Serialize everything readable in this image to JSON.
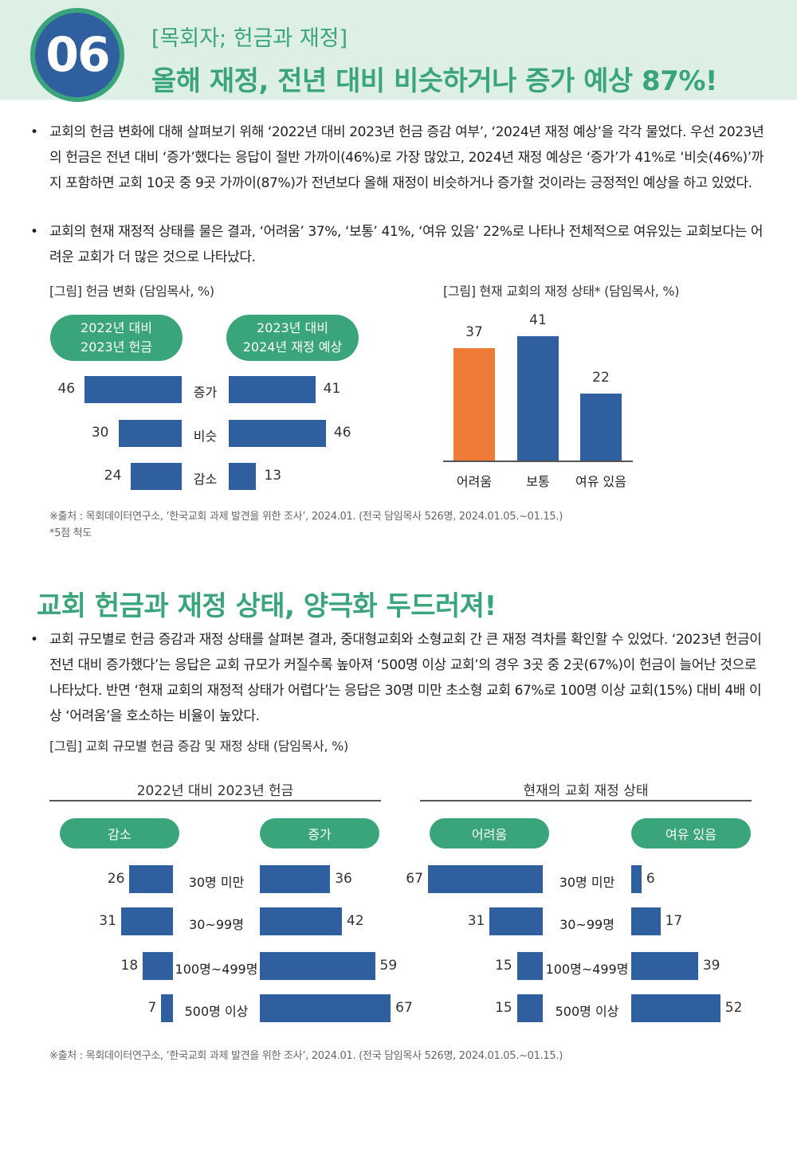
{
  "header": {
    "number": "06",
    "subtitle": "[목회자; 헌금과 재정]",
    "title": "올해 재정, 전년 대비 비슷하거나 증가 예상 87%!"
  },
  "section1": {
    "bullets": [
      "교회의 헌금 변화에 대해 살펴보기 위해 ‘2022년 대비 2023년 헌금 증감 여부’, ‘2024년 재정 예상’을 각각 물었다. 우선 2023년의 헌금은 전년 대비 ‘증가’했다는 응답이 절반 가까이(46%)로 가장 많았고, 2024년 재정 예상은 ‘증가’가 41%로 ‘비슷(46%)’까지 포함하면 교회 10곳 중 9곳 가까이(87%)가 전년보다 올해 재정이 비슷하거나 증가할 것이라는 긍정적인 예상을 하고 있었다.",
      "교회의 현재 재정적 상태를 물은 결과, ‘어려움’ 37%, ‘보통’ 41%, ‘여유 있음’ 22%로 나타나 전체적으로 여유있는 교회보다는 어려운 교회가 더 많은 것으로 나타났다."
    ],
    "source": "※출처 : 목회데이터연구소, ‘한국교회 과제 발견을 위한 조사’, 2024.01. (전국 담임목사 526명, 2024.01.05.~01.15.)",
    "note": "*5점 척도"
  },
  "section2": {
    "title": "교회 헌금과 재정 상태, 양극화 두드러져!",
    "bullets": [
      "교회 규모별로 헌금 증감과 재정 상태를 살펴본 결과, 중대형교회와 소형교회 간 큰 재정 격차를 확인할 수 있었다. ‘2023년 헌금이 전년 대비 증가했다’는 응답은 교회 규모가 커질수록 높아져 ‘500명 이상 교회’의 경우 3곳 중 2곳(67%)이 헌금이 늘어난 것으로 나타났다. 반면 ‘현재 교회의 재정적 상태가 어렵다’는 응답은 30명 미만 초소형 교회 67%로 100명 이상 교회(15%) 대비 4배 이상 ‘어려움’을 호소하는 비율이 높았다."
    ],
    "source": "※출처 : 목회데이터연구소, ‘한국교회 과제 발견을 위한 조사’, 2024.01. (전국 담임목사 526명, 2024.01.05.~01.15.)"
  },
  "colors": {
    "accent": "#3aa57b",
    "bar": "#2f5f9f",
    "highlight": "#ee7a35",
    "header_bg": "#deefe5"
  },
  "chart_data": [
    {
      "type": "bar",
      "title": "[그림] 헌금 변화 (담임목사, %)",
      "orientation": "horizontal-butterfly",
      "categories": [
        "증가",
        "비슷",
        "감소"
      ],
      "series": [
        {
          "name": "2022년 대비 2023년 헌금",
          "values": [
            46,
            30,
            24
          ]
        },
        {
          "name": "2023년 대비 2024년 재정 예상",
          "values": [
            41,
            46,
            13
          ]
        }
      ]
    },
    {
      "type": "bar",
      "title": "[그림] 현재 교회의 재정 상태* (담임목사, %)",
      "categories": [
        "어려움",
        "보통",
        "여유 있음"
      ],
      "values": [
        37,
        41,
        22
      ],
      "highlight_index": 0
    },
    {
      "type": "bar",
      "title": "[그림] 교회 규모별 헌금 증감 및 재정 상태 (담임목사, %)",
      "blocks": [
        {
          "title": "2022년 대비 2023년 헌금",
          "categories": [
            "30명 미만",
            "30~99명",
            "100명~499명",
            "500명 이상"
          ],
          "series": [
            {
              "name": "감소",
              "values": [
                26,
                31,
                18,
                7
              ]
            },
            {
              "name": "증가",
              "values": [
                36,
                42,
                59,
                67
              ]
            }
          ]
        },
        {
          "title": "현재의 교회 재정 상태",
          "categories": [
            "30명 미만",
            "30~99명",
            "100명~499명",
            "500명 이상"
          ],
          "series": [
            {
              "name": "어려움",
              "values": [
                67,
                31,
                15,
                15
              ]
            },
            {
              "name": "여유 있음",
              "values": [
                6,
                17,
                39,
                52
              ]
            }
          ]
        }
      ]
    }
  ]
}
